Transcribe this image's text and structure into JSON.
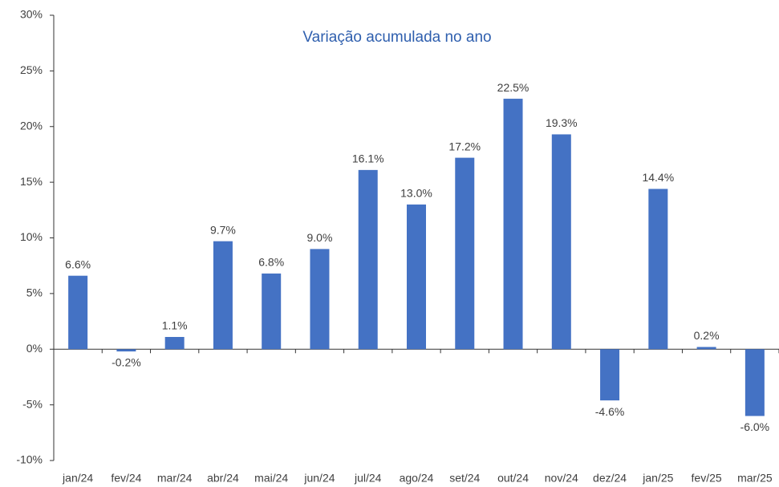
{
  "chart_data": {
    "type": "bar",
    "title": "Variação acumulada no ano",
    "categories": [
      "jan/24",
      "fev/24",
      "mar/24",
      "abr/24",
      "mai/24",
      "jun/24",
      "jul/24",
      "ago/24",
      "set/24",
      "out/24",
      "nov/24",
      "dez/24",
      "jan/25",
      "fev/25",
      "mar/25"
    ],
    "values": [
      6.6,
      -0.2,
      1.1,
      9.7,
      6.8,
      9.0,
      16.1,
      13.0,
      17.2,
      22.5,
      19.3,
      -4.6,
      14.4,
      0.2,
      -6.0
    ],
    "value_labels": [
      "6.6%",
      "-0.2%",
      "1.1%",
      "9.7%",
      "6.8%",
      "9.0%",
      "16.1%",
      "13.0%",
      "17.2%",
      "22.5%",
      "19.3%",
      "-4.6%",
      "14.4%",
      "0.2%",
      "-6.0%"
    ],
    "color": "#4472c4",
    "ylim": [
      -10,
      30
    ],
    "yticks": [
      {
        "value": -10,
        "label": "-10%"
      },
      {
        "value": -5,
        "label": "-5%"
      },
      {
        "value": 0,
        "label": "0%"
      },
      {
        "value": 5,
        "label": "5%"
      },
      {
        "value": 10,
        "label": "10%"
      },
      {
        "value": 15,
        "label": "15%"
      },
      {
        "value": 20,
        "label": "20%"
      },
      {
        "value": 25,
        "label": "25%"
      },
      {
        "value": 30,
        "label": "30%"
      }
    ],
    "grid": false
  }
}
